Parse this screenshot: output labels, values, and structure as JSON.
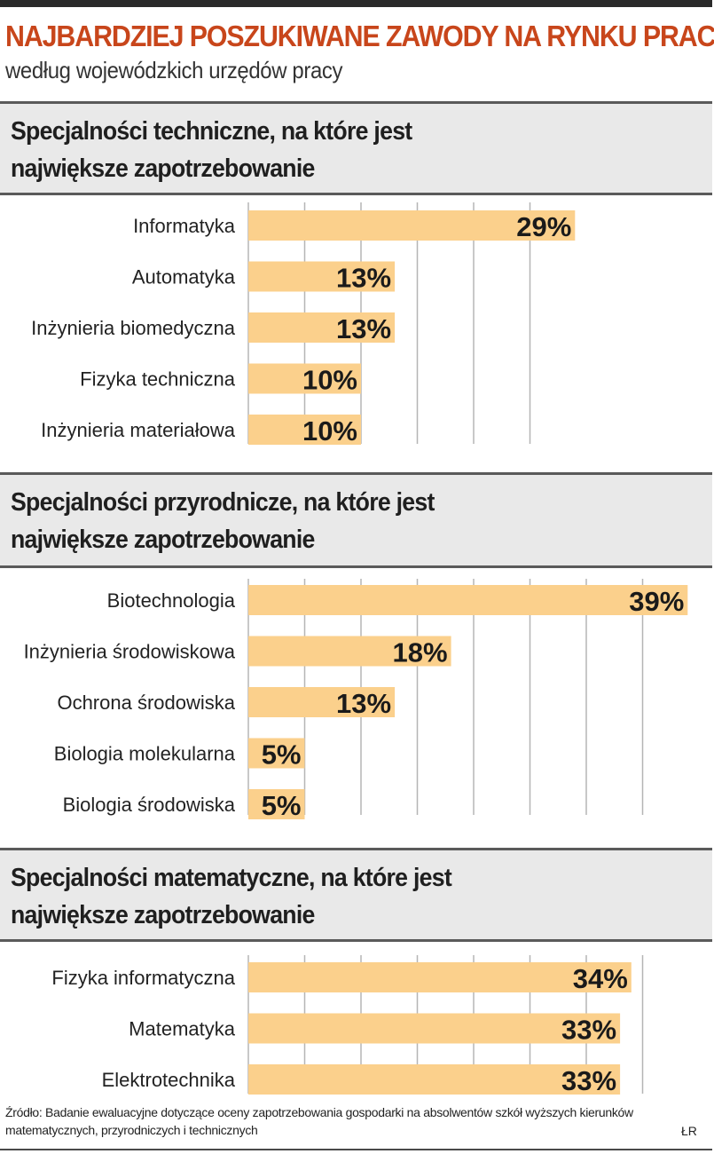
{
  "header": {
    "title": "NAJBARDZIEJ POSZUKIWANE ZAWODY NA RYNKU PRACY",
    "subtitle": "według wojewódzkich urzędów pracy"
  },
  "colors": {
    "title": "#c8461b",
    "bar": "#fbd08c",
    "grid": "#b5b5b5",
    "header_bg": "#e9e9e9",
    "text": "#222222"
  },
  "chart_data": [
    {
      "type": "bar",
      "orientation": "horizontal",
      "title": "Specjalności techniczne, na które jest\nnajwiększe zapotrzebowanie",
      "categories": [
        "Informatyka",
        "Automatyka",
        "Inżynieria biomedyczna",
        "Fizyka techniczna",
        "Inżynieria materiałowa"
      ],
      "values": [
        29,
        13,
        13,
        10,
        10
      ],
      "labels": [
        "29%",
        "13%",
        "13%",
        "10%",
        "10%"
      ],
      "unit": "%",
      "xlim": [
        0,
        30
      ],
      "gridlines": [
        5,
        10,
        15,
        20,
        25
      ]
    },
    {
      "type": "bar",
      "orientation": "horizontal",
      "title": "Specjalności przyrodnicze, na które jest\nnajwiększe zapotrzebowanie",
      "categories": [
        "Biotechnologia",
        "Inżynieria środowiskowa",
        "Ochrona środowiska",
        "Biologia molekularna",
        "Biologia środowiska"
      ],
      "values": [
        39,
        18,
        13,
        5,
        5
      ],
      "labels": [
        "39%",
        "18%",
        "13%",
        "5%",
        "5%"
      ],
      "unit": "%",
      "xlim": [
        0,
        40
      ],
      "gridlines": [
        5,
        10,
        15,
        20,
        25,
        30,
        35
      ]
    },
    {
      "type": "bar",
      "orientation": "horizontal",
      "title": "Specjalności matematyczne, na które jest\nnajwiększe zapotrzebowanie",
      "categories": [
        "Fizyka informatyczna",
        "Matematyka",
        "Elektrotechnika"
      ],
      "values": [
        34,
        33,
        33
      ],
      "labels": [
        "34%",
        "33%",
        "33%"
      ],
      "unit": "%",
      "xlim": [
        0,
        40
      ],
      "gridlines": [
        5,
        10,
        15,
        20,
        25,
        30,
        35
      ]
    }
  ],
  "footer": {
    "source": "Źródło: Badanie ewaluacyjne dotyczące oceny zapotrzebowania gospodarki na absolwentów szkół wyższych kierunków matematycznych, przyrodniczych i technicznych",
    "credit": "ŁR"
  }
}
